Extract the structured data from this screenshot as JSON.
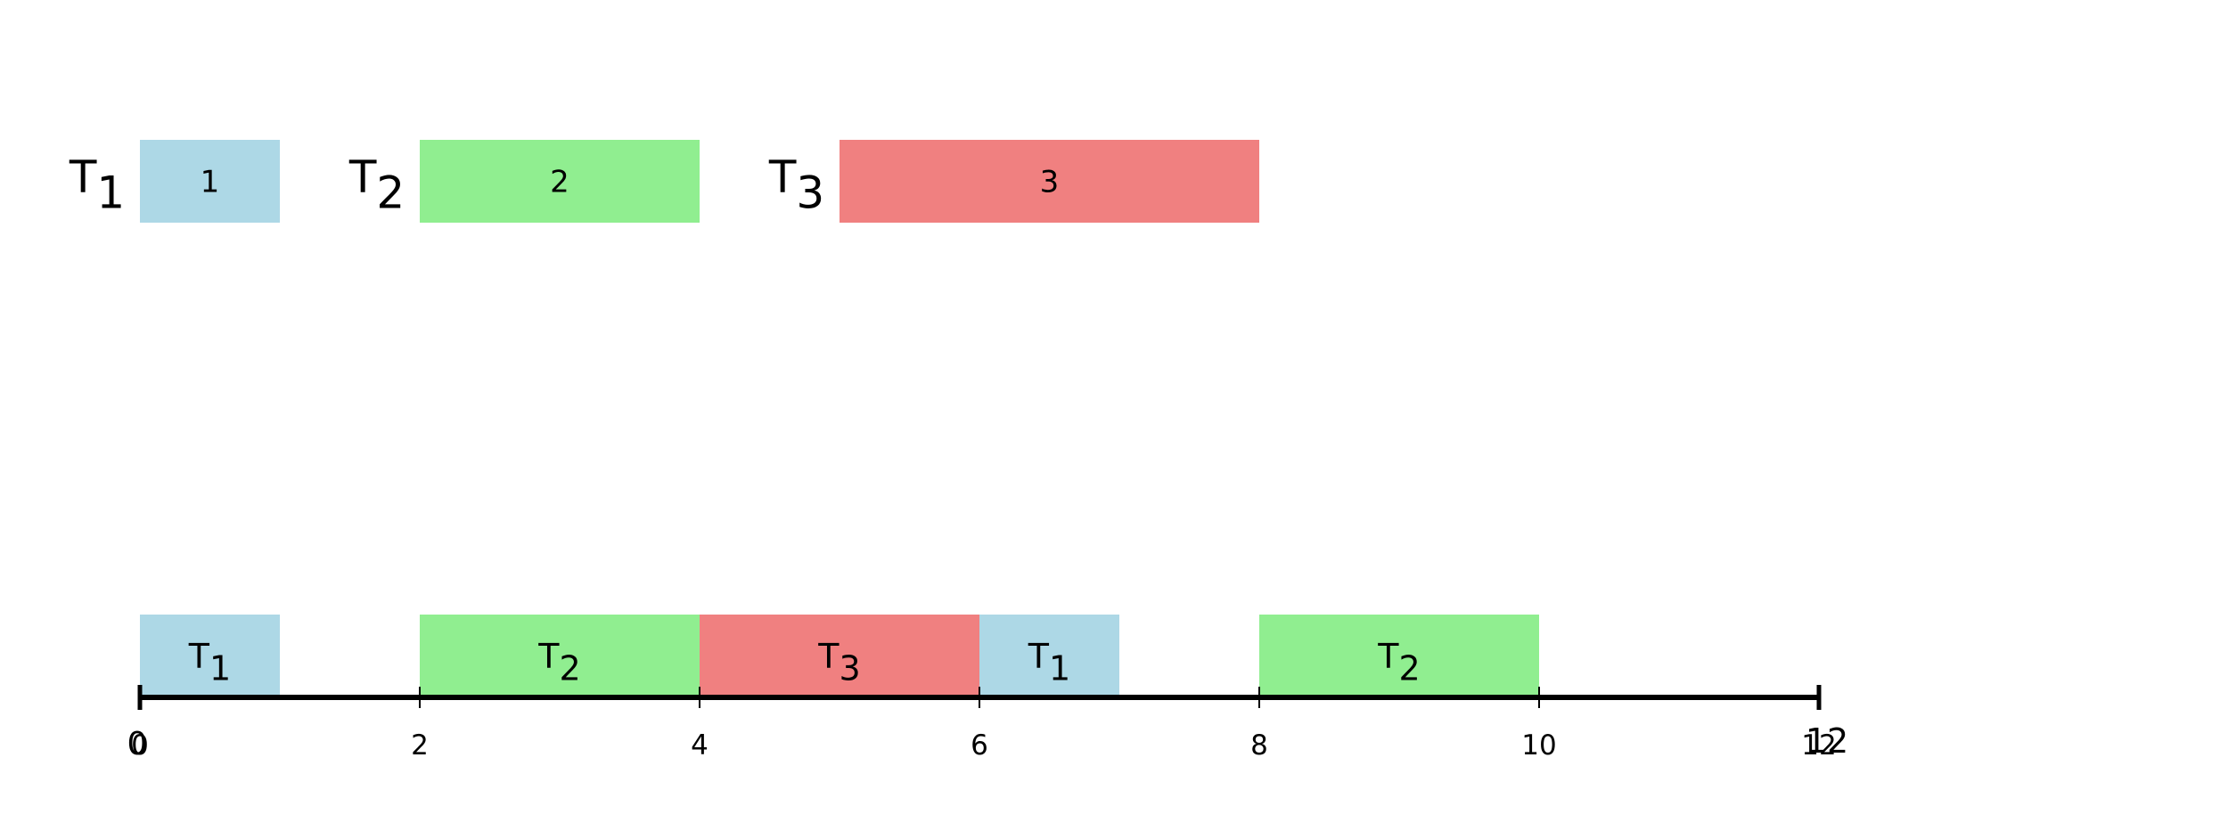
{
  "tasks": [
    {
      "name": "T",
      "sub": "1",
      "duration_label": "1",
      "start": 0,
      "end": 1,
      "color": "#add8e6"
    },
    {
      "name": "T",
      "sub": "2",
      "duration_label": "2",
      "start": 2,
      "end": 4,
      "color": "#90ee90"
    },
    {
      "name": "T",
      "sub": "3",
      "duration_label": "3",
      "start": 5,
      "end": 8,
      "color": "#f08080"
    }
  ],
  "schedule": [
    {
      "name": "T",
      "sub": "1",
      "start": 0,
      "end": 1,
      "color": "#add8e6"
    },
    {
      "name": "T",
      "sub": "2",
      "start": 2,
      "end": 4,
      "color": "#90ee90"
    },
    {
      "name": "T",
      "sub": "3",
      "start": 4,
      "end": 6,
      "color": "#f08080"
    },
    {
      "name": "T",
      "sub": "1",
      "start": 6,
      "end": 7,
      "color": "#add8e6"
    },
    {
      "name": "T",
      "sub": "2",
      "start": 8,
      "end": 10,
      "color": "#90ee90"
    }
  ],
  "axis": {
    "min": 0,
    "max": 12,
    "ticks": [
      0,
      2,
      4,
      6,
      8,
      10,
      12
    ],
    "tick_labels": [
      "0",
      "2",
      "4",
      "6",
      "8",
      "10",
      "12"
    ],
    "start_label": "0",
    "end_label": "12",
    "color": "#000000"
  }
}
